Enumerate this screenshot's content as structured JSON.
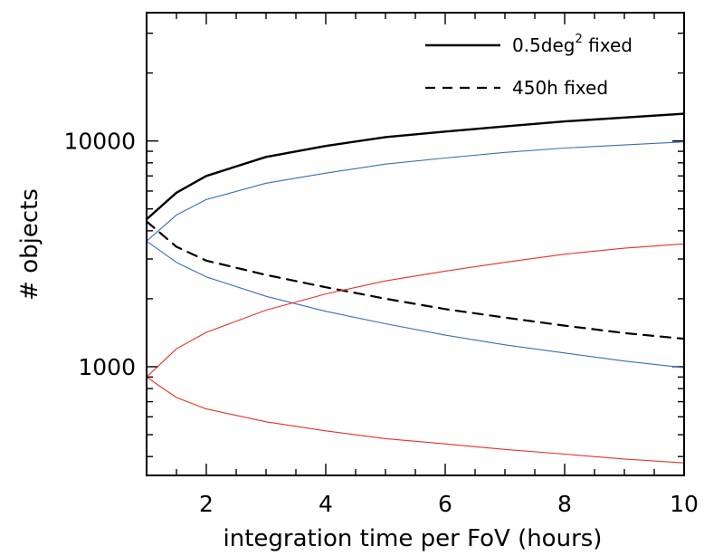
{
  "chart_data": {
    "type": "line",
    "title": "",
    "xlabel": "integration time per FoV (hours)",
    "ylabel": "# objects",
    "xlim": [
      1,
      10
    ],
    "ylim": [
      330,
      37000
    ],
    "yscale": "log",
    "grid": false,
    "x_ticks": [
      2,
      4,
      6,
      8,
      10
    ],
    "x_tick_labels": [
      "2",
      "4",
      "6",
      "8",
      "10"
    ],
    "y_ticks": [
      1000,
      10000
    ],
    "y_tick_labels": [
      "1000",
      "10000"
    ],
    "legend": {
      "placement": "top-right",
      "entries": [
        {
          "label_main": "0.5deg",
          "label_sup": "2",
          "label_tail": " fixed",
          "style": "solid"
        },
        {
          "label_main": "450h fixed",
          "style": "dashed"
        }
      ]
    },
    "series": [
      {
        "name": "0.5deg² fixed",
        "style": "solid",
        "color": "#000000",
        "width": 2.4,
        "x": [
          1,
          1.5,
          2,
          3,
          4,
          5,
          6,
          7,
          8,
          9,
          10
        ],
        "y": [
          4500,
          5900,
          7000,
          8500,
          9500,
          10400,
          11000,
          11600,
          12200,
          12700,
          13200
        ]
      },
      {
        "name": "450h fixed",
        "style": "dashed",
        "color": "#000000",
        "width": 2.2,
        "x": [
          1,
          1.5,
          2,
          3,
          4,
          5,
          6,
          7,
          8,
          9,
          10
        ],
        "y": [
          4400,
          3400,
          2950,
          2550,
          2250,
          2000,
          1800,
          1650,
          1520,
          1410,
          1330
        ]
      },
      {
        "color": "#3a6db5",
        "style": "solid",
        "width": 1.1,
        "x": [
          1,
          1.5,
          2,
          3,
          4,
          5,
          6,
          7,
          8,
          9,
          10
        ],
        "y": [
          3600,
          4700,
          5500,
          6500,
          7200,
          7900,
          8400,
          8900,
          9300,
          9600,
          9900
        ]
      },
      {
        "color": "#3a6db5",
        "style": "solid",
        "width": 1.1,
        "x": [
          1,
          1.5,
          2,
          3,
          4,
          5,
          6,
          7,
          8,
          9,
          10
        ],
        "y": [
          3600,
          2900,
          2500,
          2050,
          1760,
          1550,
          1380,
          1250,
          1150,
          1060,
          990
        ]
      },
      {
        "color": "#e8302a",
        "style": "solid",
        "width": 1.1,
        "x": [
          1,
          1.5,
          2,
          3,
          4,
          5,
          6,
          7,
          8,
          9,
          10
        ],
        "y": [
          900,
          1200,
          1420,
          1780,
          2100,
          2400,
          2650,
          2900,
          3150,
          3350,
          3500
        ]
      },
      {
        "color": "#e8302a",
        "style": "solid",
        "width": 1.1,
        "x": [
          1,
          1.5,
          2,
          3,
          4,
          5,
          6,
          7,
          8,
          9,
          10
        ],
        "y": [
          900,
          730,
          650,
          570,
          520,
          480,
          455,
          430,
          410,
          390,
          375
        ]
      }
    ]
  }
}
